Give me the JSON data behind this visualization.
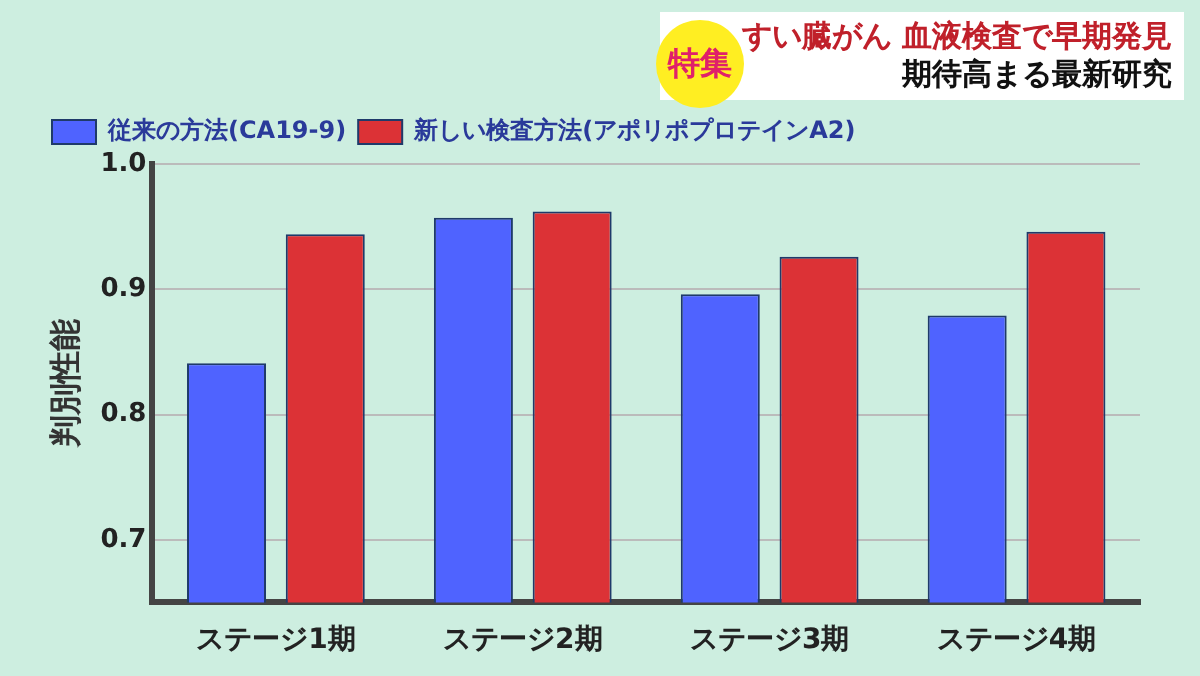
{
  "chart_data": {
    "type": "bar",
    "title": "すい臓がん 血液検査で早期発見",
    "subtitle": "期待高まる最新研究",
    "annotations": [
      "特集"
    ],
    "ylabel": "判別性能",
    "categories": [
      "ステージ1期",
      "ステージ2期",
      "ステージ3期",
      "ステージ4期"
    ],
    "series": [
      {
        "name": "従来の方法(CA19-9)",
        "color": "#4f63ff",
        "values": [
          0.841,
          0.957,
          0.896,
          0.879
        ]
      },
      {
        "name": "新しい検査方法(アポリポプロテインA2)",
        "color": "#dc3236",
        "values": [
          0.944,
          0.962,
          0.926,
          0.946
        ]
      }
    ],
    "ylim": [
      0.65,
      1.0
    ],
    "yticks": [
      {
        "value": 0.7,
        "label": "0.7"
      },
      {
        "value": 0.8,
        "label": "0.8"
      },
      {
        "value": 0.9,
        "label": "0.9"
      },
      {
        "value": 1,
        "label": "1.0"
      }
    ],
    "grid": "y",
    "legend": "top left"
  }
}
